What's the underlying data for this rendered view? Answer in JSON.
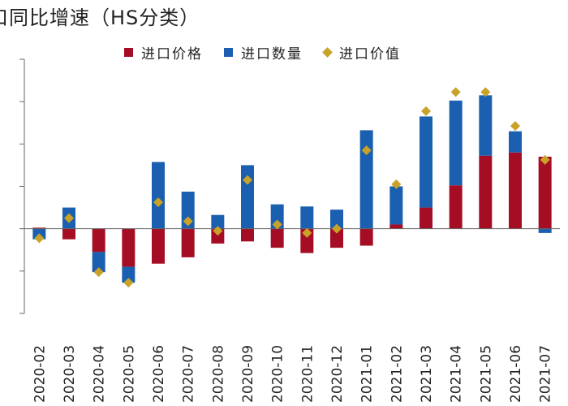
{
  "title": "口同比增速（HS分类）",
  "chart_data": {
    "type": "bar",
    "stacked": true,
    "categories": [
      "2020-02",
      "2020-03",
      "2020-04",
      "2020-05",
      "2020-06",
      "2020-07",
      "2020-08",
      "2020-09",
      "2020-10",
      "2020-11",
      "2020-12",
      "2021-01",
      "2021-02",
      "2021-03",
      "2021-04",
      "2021-05",
      "2021-06",
      "2021-07"
    ],
    "series": [
      {
        "name": "进口价格",
        "type": "bar",
        "color": "#a50d25",
        "values": [
          0.5,
          -5,
          -11,
          -18,
          -16.5,
          -13.5,
          -7,
          -6,
          -9,
          -11.5,
          -9,
          -8,
          2,
          10,
          20.5,
          34.5,
          36,
          34
        ]
      },
      {
        "name": "进口数量",
        "type": "bar",
        "color": "#1a5fb0",
        "values": [
          -5,
          10,
          -9.5,
          -7.5,
          31.5,
          17.5,
          6.5,
          30,
          11.5,
          10.5,
          9,
          46.5,
          18,
          43,
          40,
          28.5,
          10,
          -2
        ]
      },
      {
        "name": "进口价值",
        "type": "scatter",
        "color": "#c9a227",
        "values": [
          -4.5,
          5,
          -20.5,
          -25.5,
          12.5,
          3.5,
          -1,
          23,
          2,
          -2,
          0,
          37,
          21,
          55.5,
          64.5,
          64.5,
          48.5,
          32.5
        ]
      }
    ],
    "legend": [
      "进口价格",
      "进口数量",
      "进口价值"
    ],
    "legend_position": "top",
    "ylim": [
      -40,
      80
    ],
    "xlabel": "",
    "ylabel": "",
    "grid": false
  }
}
